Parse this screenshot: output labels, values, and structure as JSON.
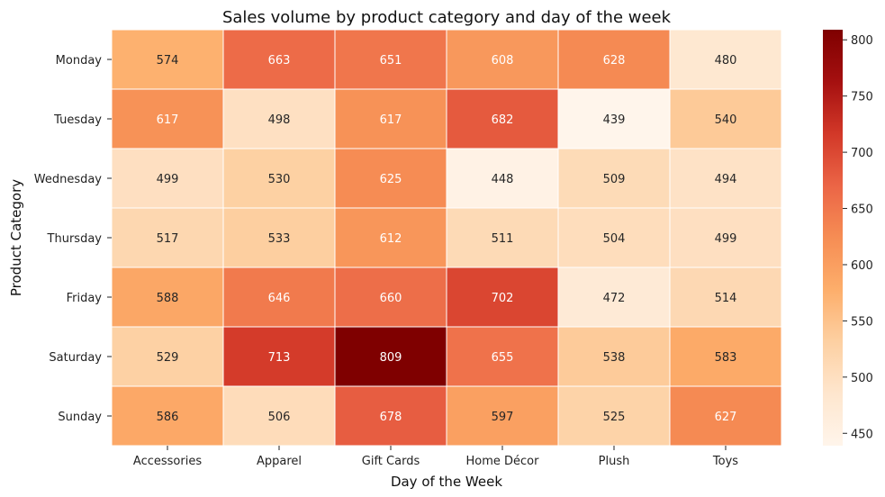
{
  "chart_data": {
    "type": "heatmap",
    "title": "Sales volume by product category and day of the week",
    "xlabel": "Day of the Week",
    "ylabel": "Product Category",
    "x_categories": [
      "Accessories",
      "Apparel",
      "Gift Cards",
      "Home Décor",
      "Plush",
      "Toys"
    ],
    "y_categories": [
      "Monday",
      "Tuesday",
      "Wednesday",
      "Thursday",
      "Friday",
      "Saturday",
      "Sunday"
    ],
    "values": [
      [
        574,
        663,
        651,
        608,
        628,
        480
      ],
      [
        617,
        498,
        617,
        682,
        439,
        540
      ],
      [
        499,
        530,
        625,
        448,
        509,
        494
      ],
      [
        517,
        533,
        612,
        511,
        504,
        499
      ],
      [
        588,
        646,
        660,
        702,
        472,
        514
      ],
      [
        529,
        713,
        809,
        655,
        538,
        583
      ],
      [
        586,
        506,
        678,
        597,
        525,
        627
      ]
    ],
    "colorscale": "Oranges-Reds (light cream to dark red)",
    "colorbar": {
      "range": [
        439,
        809
      ],
      "ticks": [
        450,
        500,
        550,
        600,
        650,
        700,
        750,
        800
      ]
    },
    "annotations": "cell values shown"
  }
}
